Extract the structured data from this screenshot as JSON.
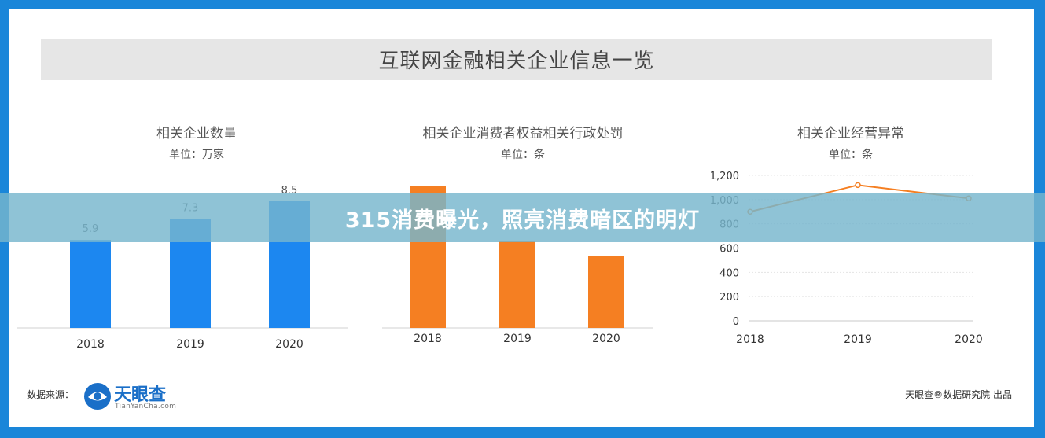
{
  "header": {
    "title": "互联网金融相关企业信息一览"
  },
  "charts": [
    {
      "title": "相关企业数量",
      "unit": "单位：万家"
    },
    {
      "title": "相关企业消费者权益相关行政处罚",
      "unit": "单位：条"
    },
    {
      "title": "相关企业经营异常",
      "unit": "单位：条"
    }
  ],
  "chart_data": [
    {
      "type": "bar",
      "title": "相关企业数量",
      "unit": "单位：万家",
      "categories": [
        "2018",
        "2019",
        "2020"
      ],
      "values": [
        5.9,
        7.3,
        8.5
      ],
      "data_labels": [
        "5.9",
        "7.3",
        "8.5"
      ],
      "color": "#1c87f0",
      "ylim": [
        0,
        9.5
      ]
    },
    {
      "type": "bar",
      "title": "相关企业消费者权益相关行政处罚",
      "unit": "单位：条",
      "categories": [
        "2018",
        "2019",
        "2020"
      ],
      "values": [
        1140,
        700,
        580
      ],
      "color": "#f57f22",
      "ylim": [
        0,
        1200
      ]
    },
    {
      "type": "line",
      "title": "相关企业经营异常",
      "unit": "单位：条",
      "x": [
        "2018",
        "2019",
        "2020"
      ],
      "values": [
        900,
        1120,
        1010
      ],
      "color": "#f57f22",
      "ylim": [
        0,
        1200
      ],
      "yticks": [
        "0",
        "200",
        "400",
        "600",
        "800",
        "1,000",
        "1,200"
      ],
      "grid": true
    }
  ],
  "footer": {
    "source_label": "数据来源：",
    "logo_name": "天眼查",
    "logo_sub": "TianYanCha.com",
    "publisher": "天眼查®数据研究院 出品"
  },
  "overlay": {
    "text": "315消费曝光，照亮消费暗区的明灯"
  },
  "colors": {
    "frame": "#1a86d9",
    "bar_blue": "#1c87f0",
    "bar_orange": "#f57f22",
    "line": "#f57f22"
  }
}
